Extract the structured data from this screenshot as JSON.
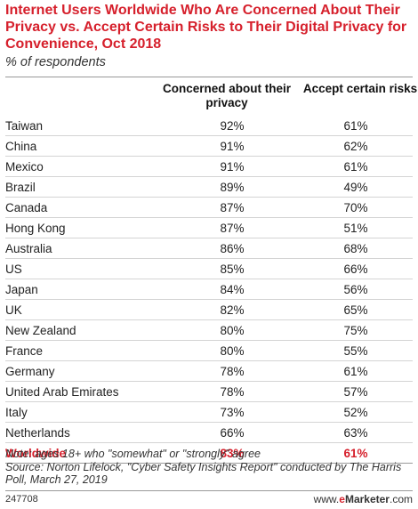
{
  "header": {
    "title": "Internet Users Worldwide Who Are Concerned About Their Privacy vs. Accept Certain Risks to Their Digital Privacy for Convenience, Oct 2018",
    "subtitle": "% of respondents"
  },
  "chart_data": {
    "type": "table",
    "title": "Internet Users Worldwide Who Are Concerned About Their Privacy vs. Accept Certain Risks to Their Digital Privacy for Convenience, Oct 2018",
    "subtitle": "% of respondents",
    "columns": [
      "Concerned about their privacy",
      "Accept certain risks"
    ],
    "rows": [
      {
        "label": "Taiwan",
        "values": [
          "92%",
          "61%"
        ]
      },
      {
        "label": "China",
        "values": [
          "91%",
          "62%"
        ]
      },
      {
        "label": "Mexico",
        "values": [
          "91%",
          "61%"
        ]
      },
      {
        "label": "Brazil",
        "values": [
          "89%",
          "49%"
        ]
      },
      {
        "label": "Canada",
        "values": [
          "87%",
          "70%"
        ]
      },
      {
        "label": "Hong Kong",
        "values": [
          "87%",
          "51%"
        ]
      },
      {
        "label": "Australia",
        "values": [
          "86%",
          "68%"
        ]
      },
      {
        "label": "US",
        "values": [
          "85%",
          "66%"
        ]
      },
      {
        "label": "Japan",
        "values": [
          "84%",
          "56%"
        ]
      },
      {
        "label": "UK",
        "values": [
          "82%",
          "65%"
        ]
      },
      {
        "label": "New Zealand",
        "values": [
          "80%",
          "75%"
        ]
      },
      {
        "label": "France",
        "values": [
          "80%",
          "55%"
        ]
      },
      {
        "label": "Germany",
        "values": [
          "78%",
          "61%"
        ]
      },
      {
        "label": "United Arab Emirates",
        "values": [
          "78%",
          "57%"
        ]
      },
      {
        "label": "Italy",
        "values": [
          "73%",
          "52%"
        ]
      },
      {
        "label": "Netherlands",
        "values": [
          "66%",
          "63%"
        ]
      }
    ],
    "total": {
      "label": "Worldwide",
      "values": [
        "83%",
        "61%"
      ]
    },
    "highlight_color": "#d6202c"
  },
  "footer": {
    "note": "Note: ages 18+ who \"somewhat\" or \"strongly\" agree",
    "source": "Source: Norton Lifelock, \"Cyber Safety Insights Report\" conducted by The Harris Poll, March 27, 2019",
    "chart_id": "247708",
    "brand_prefix": "www.",
    "brand_e": "e",
    "brand_name": "Marketer",
    "brand_suffix": ".com"
  }
}
